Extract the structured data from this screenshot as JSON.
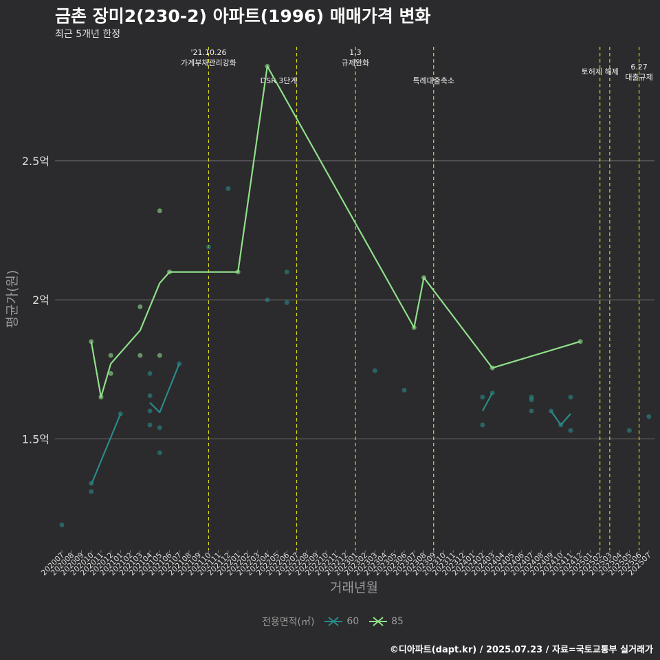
{
  "header": {
    "title": "금촌 장미2(230-2) 아파트(1996) 매매가격 변화",
    "subtitle": "최근 5개년 한정"
  },
  "footer": {
    "caption": "©디아파트(dapt.kr) / 2025.07.23 / 자료=국토교통부 실거래가"
  },
  "colors": {
    "background": "#2b2a2c",
    "grid": "#6b6b6b",
    "event_line": "#d7d91e",
    "series_60": "#2a8a8a",
    "series_85": "#8fe08a"
  },
  "chart_data": {
    "type": "line",
    "xlabel": "거래년월",
    "ylabel": "평균가(원)",
    "x_categories": [
      "202007",
      "202008",
      "202009",
      "202010",
      "202011",
      "202012",
      "202101",
      "202102",
      "202103",
      "202104",
      "202105",
      "202106",
      "202107",
      "202108",
      "202109",
      "202110",
      "202111",
      "202112",
      "202201",
      "202202",
      "202203",
      "202204",
      "202205",
      "202206",
      "202207",
      "202208",
      "202209",
      "202210",
      "202211",
      "202212",
      "202301",
      "202302",
      "202303",
      "202304",
      "202305",
      "202306",
      "202307",
      "202308",
      "202309",
      "202310",
      "202311",
      "202312",
      "202401",
      "202402",
      "202403",
      "202404",
      "202405",
      "202406",
      "202407",
      "202408",
      "202409",
      "202410",
      "202411",
      "202412",
      "202501",
      "202502",
      "202503",
      "202504",
      "202505",
      "202506",
      "202507"
    ],
    "y_ticks": [
      {
        "value": 150000000,
        "label": "1.5억"
      },
      {
        "value": 200000000,
        "label": "2억"
      },
      {
        "value": 250000000,
        "label": "2.5억"
      }
    ],
    "ylim": [
      110000000,
      293000000
    ],
    "grid": true,
    "legend": {
      "title": "전용면적(㎡)",
      "placement": "bottom",
      "entries": [
        {
          "label": "60",
          "color": "#2a8a8a"
        },
        {
          "label": "85",
          "color": "#8fe08a"
        }
      ]
    },
    "events": [
      {
        "x": "202110",
        "lines": [
          "'21.10.26",
          "가계부채관리강화"
        ],
        "label_row": 0
      },
      {
        "x": "202207",
        "lines": [
          "DSR 3단계"
        ],
        "label_row": 2,
        "anchor": "end"
      },
      {
        "x": "202301",
        "lines": [
          "1.3",
          "규제완화"
        ],
        "label_row": 0
      },
      {
        "x": "202309",
        "lines": [
          "특례대출축소"
        ],
        "label_row": 2
      },
      {
        "x": "202502",
        "lines": [
          "토허제 해제"
        ],
        "label_row": 1
      },
      {
        "x": "202503",
        "lines": [],
        "label_row": 1
      },
      {
        "x": "202506",
        "lines": [
          "6.27",
          "대출규제"
        ],
        "label_row": 1.6
      }
    ],
    "series": [
      {
        "name": "60",
        "color": "#2a8a8a",
        "line": [
          [
            "202010",
            133500000
          ],
          [
            "202101",
            159000000
          ],
          null,
          [
            "202104",
            163000000
          ],
          [
            "202105",
            159500000
          ],
          [
            "202107",
            177000000
          ],
          null,
          [
            "202402",
            160000000
          ],
          [
            "202403",
            166500000
          ],
          null,
          [
            "202409",
            160000000
          ],
          [
            "202410",
            155000000
          ],
          [
            "202411",
            159000000
          ]
        ],
        "points": [
          [
            "202007",
            119000000
          ],
          [
            "202010",
            134000000
          ],
          [
            "202010",
            131000000
          ],
          [
            "202101",
            159000000
          ],
          [
            "202104",
            173500000
          ],
          [
            "202104",
            165500000
          ],
          [
            "202104",
            160000000
          ],
          [
            "202104",
            155000000
          ],
          [
            "202105",
            154000000
          ],
          [
            "202105",
            145000000
          ],
          [
            "202107",
            177000000
          ],
          [
            "202110",
            219000000
          ],
          [
            "202112",
            240000000
          ],
          [
            "202204",
            200000000
          ],
          [
            "202206",
            210000000
          ],
          [
            "202206",
            199000000
          ],
          [
            "202303",
            174500000
          ],
          [
            "202306",
            167500000
          ],
          [
            "202402",
            165000000
          ],
          [
            "202402",
            155000000
          ],
          [
            "202403",
            166500000
          ],
          [
            "202407",
            165000000
          ],
          [
            "202407",
            164000000
          ],
          [
            "202407",
            160000000
          ],
          [
            "202409",
            160000000
          ],
          [
            "202410",
            155000000
          ],
          [
            "202411",
            165000000
          ],
          [
            "202411",
            153000000
          ],
          [
            "202505",
            153000000
          ],
          [
            "202507",
            158000000
          ]
        ]
      },
      {
        "name": "85",
        "color": "#8fe08a",
        "line": [
          [
            "202010",
            185000000
          ],
          [
            "202011",
            165000000
          ],
          [
            "202012",
            177000000
          ],
          [
            "202103",
            189000000
          ],
          [
            "202105",
            206000000
          ],
          [
            "202106",
            210000000
          ],
          [
            "202201",
            210000000
          ],
          [
            "202204",
            284000000
          ],
          [
            "202307",
            190000000
          ],
          [
            "202308",
            208000000
          ],
          [
            "202403",
            175500000
          ],
          [
            "202412",
            185000000
          ]
        ],
        "points": [
          [
            "202010",
            185000000
          ],
          [
            "202011",
            165000000
          ],
          [
            "202012",
            180000000
          ],
          [
            "202012",
            173500000
          ],
          [
            "202103",
            197500000
          ],
          [
            "202103",
            180000000
          ],
          [
            "202105",
            232000000
          ],
          [
            "202105",
            180000000
          ],
          [
            "202106",
            210000000
          ],
          [
            "202201",
            210000000
          ],
          [
            "202204",
            284000000
          ],
          [
            "202307",
            190000000
          ],
          [
            "202308",
            208000000
          ],
          [
            "202403",
            175500000
          ],
          [
            "202412",
            185000000
          ]
        ]
      }
    ]
  }
}
